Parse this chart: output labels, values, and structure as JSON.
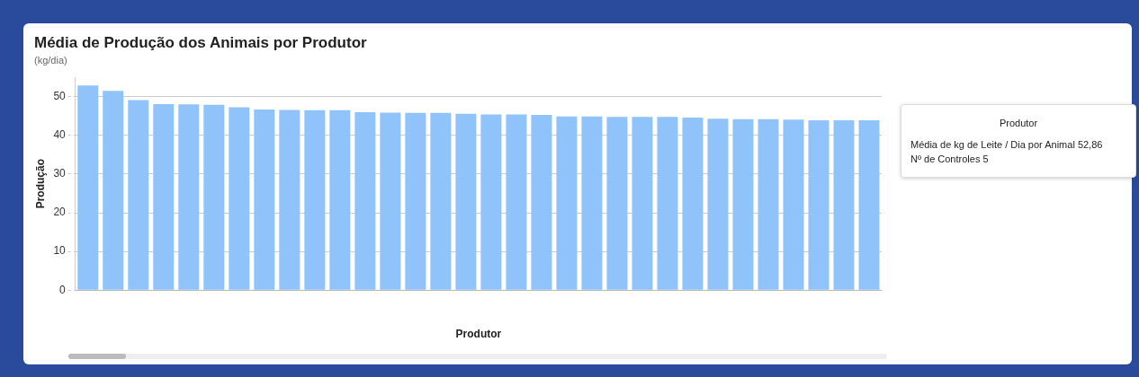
{
  "chart_data": {
    "type": "bar",
    "title": "Média de Produção dos Animais por Produtor",
    "subtitle": "(kg/dia)",
    "xlabel": "Produtor",
    "ylabel": "Produção",
    "categories": [
      null,
      null,
      null,
      null,
      null,
      null,
      null,
      null,
      null,
      null,
      null,
      null,
      null,
      null,
      null,
      null,
      null,
      null,
      null,
      null,
      null,
      null,
      null,
      null,
      null,
      null,
      null,
      null,
      null,
      null,
      null,
      null
    ],
    "values": [
      52.9,
      51.5,
      49.1,
      48.1,
      48.0,
      47.9,
      47.3,
      46.7,
      46.6,
      46.5,
      46.5,
      46.0,
      45.9,
      45.8,
      45.8,
      45.6,
      45.4,
      45.4,
      45.3,
      44.9,
      44.9,
      44.8,
      44.8,
      44.8,
      44.6,
      44.3,
      44.2,
      44.2,
      44.1,
      43.9,
      43.9,
      43.9
    ],
    "color": "#90c3f9",
    "ylim": [
      0,
      55
    ],
    "yticks": [
      0,
      10,
      20,
      30,
      40,
      50
    ],
    "grid": "y",
    "annotations": [
      "Produtor",
      "Média de kg de Leite / Dia por Animal 52,86",
      "Nº de Controles 5"
    ]
  }
}
